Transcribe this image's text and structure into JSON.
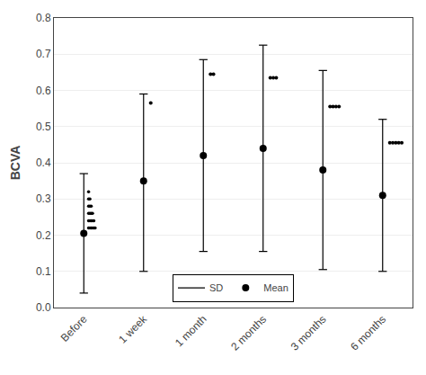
{
  "chart_data": {
    "type": "errorbar",
    "categories": [
      "Before",
      "1 week",
      "1 month",
      "2 months",
      "3 months",
      "6 months"
    ],
    "series": [
      {
        "name": "Mean",
        "values": [
          0.205,
          0.35,
          0.42,
          0.44,
          0.38,
          0.31
        ]
      },
      {
        "name": "SD",
        "lower": [
          0.04,
          0.1,
          0.155,
          0.155,
          0.105,
          0.1
        ],
        "upper": [
          0.37,
          0.59,
          0.685,
          0.725,
          0.655,
          0.52
        ]
      }
    ],
    "color": "#000000",
    "ylabel": "BCVA",
    "ylim": [
      0.0,
      0.8
    ],
    "yticks": [
      {
        "value": 0.0,
        "label": "0.0"
      },
      0.1,
      0.2,
      0.3,
      0.4,
      0.5,
      0.6,
      0.7,
      0.8
    ],
    "grid": true,
    "legend": "lower center",
    "sig_dots": [
      {
        "category": "1 week",
        "y": 0.565,
        "n": 1
      },
      {
        "category": "1 month",
        "y": 0.645,
        "n": 2
      },
      {
        "category": "2 months",
        "y": 0.635,
        "n": 3
      },
      {
        "category": "3 months",
        "y": 0.555,
        "n": 4
      },
      {
        "category": "6 months",
        "y": 0.455,
        "n": 5
      }
    ],
    "before_scatter": [
      {
        "category": "Before",
        "y": 0.32,
        "n": 1
      },
      {
        "category": "Before",
        "y": 0.3,
        "n": 2
      },
      {
        "category": "Before",
        "y": 0.28,
        "n": 3
      },
      {
        "category": "Before",
        "y": 0.26,
        "n": 4
      },
      {
        "category": "Before",
        "y": 0.24,
        "n": 5
      },
      {
        "category": "Before",
        "y": 0.22,
        "n": 6
      }
    ]
  }
}
